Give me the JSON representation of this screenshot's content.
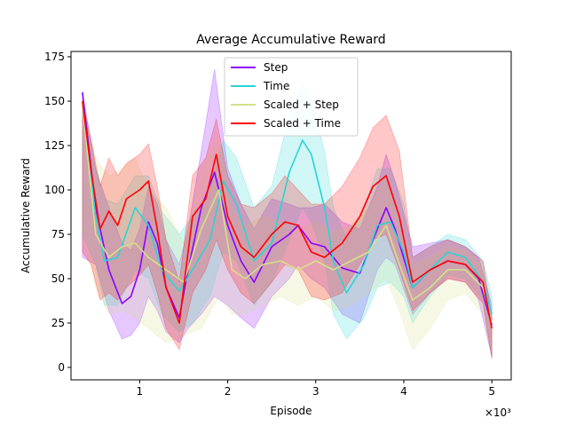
{
  "chart_data": {
    "type": "line",
    "title": "Average Accumulative Reward",
    "xlabel": "Episode",
    "ylabel": "Accumulative Reward",
    "x_multiplier_label": "×10³",
    "xlim": [
      0.22,
      5.22
    ],
    "ylim": [
      -7,
      178
    ],
    "x_ticks": [
      1,
      2,
      3,
      4,
      5
    ],
    "x_tick_labels": [
      "1",
      "2",
      "3",
      "4",
      "5"
    ],
    "y_ticks": [
      0,
      25,
      50,
      75,
      100,
      125,
      150,
      175
    ],
    "y_tick_labels": [
      "0",
      "25",
      "50",
      "75",
      "100",
      "125",
      "150",
      "175"
    ],
    "grid": false,
    "legend_position": "top-center",
    "series": [
      {
        "name": "Step",
        "color": "#8b00ff",
        "x": [
          0.35,
          0.5,
          0.65,
          0.8,
          0.9,
          1.0,
          1.1,
          1.2,
          1.3,
          1.45,
          1.55,
          1.7,
          1.85,
          2.0,
          2.15,
          2.3,
          2.5,
          2.7,
          2.8,
          2.95,
          3.1,
          3.3,
          3.5,
          3.7,
          3.8,
          3.9,
          4.1,
          4.3,
          4.5,
          4.7,
          4.85,
          5.0
        ],
        "values": [
          155,
          90,
          55,
          36,
          40,
          55,
          82,
          70,
          45,
          28,
          55,
          90,
          110,
          80,
          60,
          48,
          68,
          75,
          80,
          70,
          68,
          56,
          53,
          78,
          90,
          78,
          45,
          55,
          60,
          58,
          50,
          24
        ],
        "upper": [
          155,
          112,
          90,
          70,
          66,
          78,
          102,
          92,
          72,
          58,
          78,
          122,
          168,
          112,
          92,
          78,
          95,
          92,
          90,
          90,
          92,
          82,
          78,
          102,
          120,
          105,
          68,
          70,
          72,
          68,
          62,
          35
        ],
        "lower": [
          62,
          58,
          32,
          16,
          18,
          25,
          40,
          32,
          20,
          14,
          22,
          30,
          40,
          35,
          28,
          22,
          40,
          50,
          58,
          50,
          45,
          30,
          25,
          55,
          62,
          58,
          30,
          42,
          50,
          48,
          38,
          6
        ]
      },
      {
        "name": "Time",
        "color": "#2ad4d4",
        "x": [
          0.35,
          0.5,
          0.6,
          0.75,
          0.95,
          1.1,
          1.25,
          1.45,
          1.6,
          1.8,
          1.95,
          2.1,
          2.3,
          2.5,
          2.7,
          2.85,
          2.95,
          3.1,
          3.2,
          3.35,
          3.55,
          3.7,
          3.85,
          4.0,
          4.1,
          4.3,
          4.5,
          4.7,
          4.9,
          5.0
        ],
        "values": [
          150,
          85,
          60,
          62,
          90,
          80,
          55,
          43,
          55,
          72,
          105,
          92,
          60,
          70,
          110,
          128,
          120,
          90,
          60,
          42,
          58,
          80,
          82,
          65,
          45,
          55,
          65,
          62,
          48,
          30
        ],
        "upper": [
          150,
          112,
          95,
          92,
          108,
          108,
          88,
          75,
          85,
          100,
          128,
          118,
          90,
          102,
          142,
          160,
          150,
          122,
          90,
          72,
          90,
          112,
          112,
          92,
          62,
          68,
          75,
          72,
          60,
          40
        ],
        "lower": [
          75,
          58,
          35,
          35,
          55,
          50,
          30,
          20,
          25,
          40,
          65,
          60,
          35,
          48,
          72,
          90,
          82,
          60,
          30,
          16,
          28,
          45,
          48,
          40,
          25,
          40,
          52,
          50,
          38,
          5
        ]
      },
      {
        "name": "Scaled + Step",
        "color": "#d4e08a",
        "x": [
          0.35,
          0.5,
          0.65,
          0.8,
          0.95,
          1.1,
          1.3,
          1.5,
          1.7,
          1.9,
          2.05,
          2.2,
          2.4,
          2.6,
          2.8,
          3.0,
          3.2,
          3.4,
          3.6,
          3.8,
          3.95,
          4.1,
          4.3,
          4.5,
          4.7,
          4.9,
          5.0
        ],
        "values": [
          148,
          75,
          62,
          68,
          70,
          62,
          55,
          48,
          78,
          100,
          55,
          50,
          58,
          60,
          55,
          60,
          55,
          60,
          65,
          80,
          58,
          38,
          45,
          55,
          55,
          45,
          25
        ],
        "upper": [
          148,
          118,
          108,
          112,
          118,
          100,
          90,
          70,
          112,
          130,
          90,
          80,
          85,
          82,
          78,
          82,
          76,
          80,
          90,
          108,
          82,
          58,
          62,
          68,
          66,
          56,
          30
        ],
        "lower": [
          75,
          45,
          30,
          32,
          28,
          22,
          14,
          18,
          22,
          40,
          30,
          30,
          35,
          40,
          35,
          40,
          32,
          35,
          42,
          50,
          32,
          10,
          22,
          38,
          42,
          30,
          8
        ]
      },
      {
        "name": "Scaled + Time",
        "color": "#ff0000",
        "x": [
          0.35,
          0.45,
          0.55,
          0.65,
          0.75,
          0.85,
          1.0,
          1.1,
          1.2,
          1.3,
          1.45,
          1.6,
          1.75,
          1.87,
          2.0,
          2.15,
          2.3,
          2.5,
          2.65,
          2.8,
          2.95,
          3.1,
          3.3,
          3.5,
          3.65,
          3.8,
          3.95,
          4.1,
          4.3,
          4.5,
          4.7,
          4.9,
          5.0
        ],
        "values": [
          150,
          110,
          78,
          88,
          80,
          95,
          100,
          105,
          78,
          45,
          25,
          85,
          95,
          120,
          85,
          68,
          62,
          75,
          82,
          80,
          65,
          62,
          70,
          85,
          102,
          108,
          85,
          48,
          55,
          60,
          58,
          48,
          22
        ],
        "upper": [
          150,
          128,
          102,
          118,
          108,
          115,
          120,
          126,
          102,
          72,
          48,
          108,
          118,
          140,
          108,
          92,
          90,
          98,
          108,
          100,
          92,
          92,
          102,
          118,
          135,
          142,
          122,
          62,
          68,
          72,
          68,
          60,
          28
        ],
        "lower": [
          65,
          58,
          38,
          42,
          38,
          45,
          52,
          58,
          42,
          22,
          10,
          42,
          55,
          72,
          55,
          42,
          36,
          48,
          58,
          55,
          40,
          38,
          42,
          58,
          72,
          75,
          55,
          32,
          42,
          50,
          48,
          36,
          5
        ]
      }
    ]
  }
}
